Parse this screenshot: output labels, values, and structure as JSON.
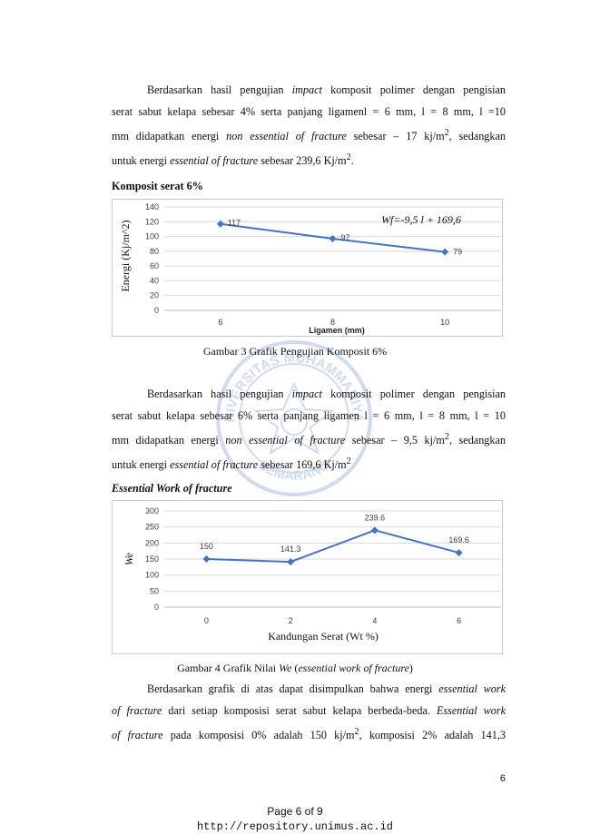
{
  "para1": {
    "line1": [
      "Berdasarkan hasil pengujian ",
      "impact",
      " komposit polimer dengan pengisian"
    ],
    "line2": "serat sabut kelapa sebesar  4% serta panjang ligamenl = 6 mm, l = 8 mm, l =10",
    "line3": [
      "mm didapatkan energi ",
      "non essential of fracture",
      " sebesar – 17 kj/m",
      "2",
      ", sedangkan"
    ],
    "line4": [
      "untuk energi ",
      "essential of fracture",
      " sebesar 239,6 Kj/m",
      "2",
      "."
    ]
  },
  "heading1": "Komposit serat 6%",
  "chart1": {
    "type": "line",
    "x": [
      6,
      8,
      10
    ],
    "values": [
      117,
      97,
      79
    ],
    "data_labels": [
      "117",
      "97",
      "79"
    ],
    "xticks": [
      "6",
      "8",
      "10"
    ],
    "yticks": [
      "0",
      "20",
      "40",
      "60",
      "80",
      "100",
      "120",
      "140"
    ],
    "ylim": [
      0,
      140
    ],
    "xlim": [
      5,
      11
    ],
    "xlabel": "Ligamen (mm)",
    "ylabel": "Energi (Kj/m^2)",
    "annotation": "Wf=-9,5 l + 169,6",
    "color": "#4472C4"
  },
  "caption1": "Gambar 3 Grafik Pengujian Komposit 6%",
  "para2": {
    "line1": [
      "Berdasarkan hasil pengujian ",
      "impact",
      " komposit polimer dengan pengisian"
    ],
    "line2": "serat sabut kelapa sebesar  6% serta panjang ligamen l = 6 mm, l = 8 mm, l = 10",
    "line3": [
      "mm didapatkan energi ",
      "non essential of fracture",
      " sebesar – 9,5 kj/m",
      "2",
      ", sedangkan"
    ],
    "line4": [
      "untuk energi ",
      "essential of fracture",
      " sebesar 169,6 Kj/m",
      "2"
    ]
  },
  "heading2": "Essential Work of fracture",
  "chart2": {
    "type": "line",
    "x": [
      0,
      2,
      4,
      6
    ],
    "values": [
      150,
      141.3,
      239.6,
      169.6
    ],
    "data_labels": [
      "150",
      "141.3",
      "239.6",
      "169.6"
    ],
    "xticks": [
      "0",
      "2",
      "4",
      "6"
    ],
    "yticks": [
      "0",
      "50",
      "100",
      "150",
      "200",
      "250",
      "300"
    ],
    "ylim": [
      0,
      300
    ],
    "xlim": [
      -1,
      7
    ],
    "xlabel": "Kandungan Serat (Wt %)",
    "ylabel": "We",
    "color": "#4472C4"
  },
  "caption2": [
    "Gambar 4 Grafik Nilai ",
    "We",
    " (",
    "essential work of fracture",
    ")"
  ],
  "para3": {
    "line1": [
      "Berdasarkan grafik di atas dapat disimpulkan bahwa energi ",
      "essential work"
    ],
    "line2": [
      "of fracture",
      " dari setiap komposisi serat sabut kelapa berbeda-beda. ",
      "Essential work"
    ],
    "line3": [
      "of fracture",
      " pada komposisi 0% adalah 150 kj/m",
      "2",
      ", komposisi 2% adalah 141,3"
    ]
  },
  "page_number": "6",
  "footer_page": "Page 6 of 9",
  "footer_url": "http://repository.unimus.ac.id",
  "watermark": {
    "top_text": "UNIVERSITAS MUHAMMADIYAH",
    "bottom_text": "SEMARANG"
  }
}
